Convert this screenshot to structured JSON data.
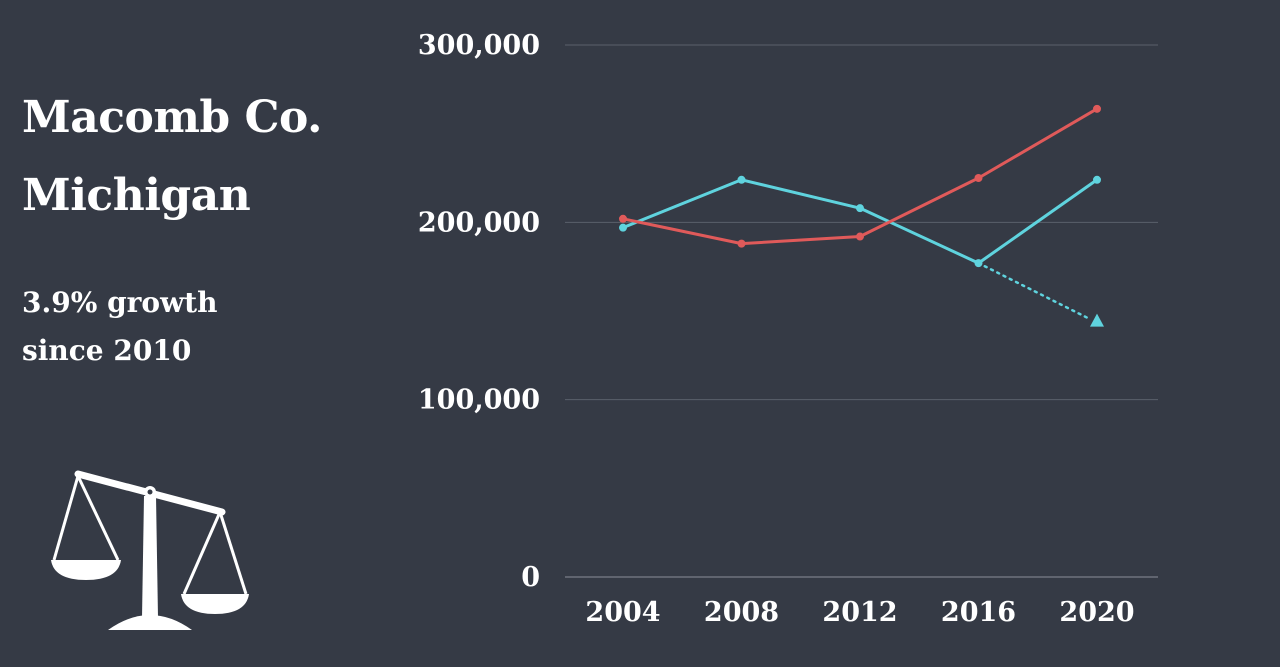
{
  "header": {
    "title_line1": "Macomb Co.",
    "title_line2": "Michigan",
    "growth_line1": "3.9% growth",
    "growth_line2": "since 2010"
  },
  "icons": {
    "scale": "balance-scale-icon"
  },
  "chart_data": {
    "type": "line",
    "title": "",
    "xlabel": "",
    "ylabel": "",
    "categories": [
      "2004",
      "2008",
      "2012",
      "2016",
      "2020"
    ],
    "ylim": [
      0,
      300000
    ],
    "yticks": [
      0,
      100000,
      200000,
      300000
    ],
    "ytick_labels": [
      "0",
      "100,000",
      "200,000",
      "300,000"
    ],
    "grid": true,
    "legend": "none",
    "series": [
      {
        "color": "#e05a5a",
        "values": [
          202000,
          188000,
          192000,
          225000,
          264000
        ]
      },
      {
        "color": "#5fd3de",
        "values": [
          197000,
          224000,
          208000,
          177000,
          224000
        ]
      }
    ],
    "projection": {
      "color": "#5fd3de",
      "from_category": "2016",
      "from_value": 177000,
      "to_category": "2020",
      "to_value": 144000,
      "style": "dotted",
      "marker": "triangle"
    }
  }
}
